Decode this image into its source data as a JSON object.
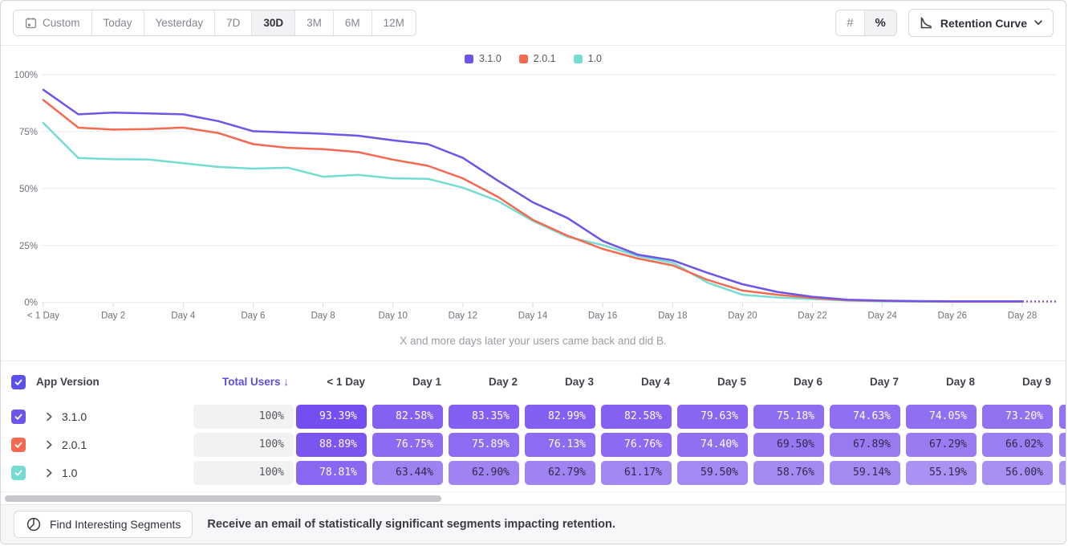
{
  "toolbar": {
    "date_ranges": [
      {
        "label": "Custom",
        "icon": "calendar-icon",
        "selected": false
      },
      {
        "label": "Today",
        "selected": false
      },
      {
        "label": "Yesterday",
        "selected": false
      },
      {
        "label": "7D",
        "selected": false
      },
      {
        "label": "30D",
        "selected": true
      },
      {
        "label": "3M",
        "selected": false
      },
      {
        "label": "6M",
        "selected": false
      },
      {
        "label": "12M",
        "selected": false
      }
    ],
    "value_mode": [
      {
        "label": "#",
        "name": "absolute-numbers",
        "selected": false
      },
      {
        "label": "%",
        "name": "percentages",
        "selected": true
      }
    ],
    "view_selector": {
      "label": "Retention Curve",
      "icon": "retention-curve-icon",
      "chevron_icon": "chevron-down-icon"
    }
  },
  "chart_data": {
    "type": "line",
    "ylim": [
      0,
      100
    ],
    "grid": "horizontal",
    "legend_position": "top-center",
    "yticks": [
      {
        "value": 0,
        "label": "0%"
      },
      {
        "value": 25,
        "label": "25%"
      },
      {
        "value": 50,
        "label": "50%"
      },
      {
        "value": 75,
        "label": "75%"
      },
      {
        "value": 100,
        "label": "100%"
      }
    ],
    "x_tick_labels": [
      {
        "day": 0,
        "label": "< 1 Day"
      },
      {
        "day": 2,
        "label": "Day 2"
      },
      {
        "day": 4,
        "label": "Day 4"
      },
      {
        "day": 6,
        "label": "Day 6"
      },
      {
        "day": 8,
        "label": "Day 8"
      },
      {
        "day": 10,
        "label": "Day 10"
      },
      {
        "day": 12,
        "label": "Day 12"
      },
      {
        "day": 14,
        "label": "Day 14"
      },
      {
        "day": 16,
        "label": "Day 16"
      },
      {
        "day": 18,
        "label": "Day 18"
      },
      {
        "day": 20,
        "label": "Day 20"
      },
      {
        "day": 22,
        "label": "Day 22"
      },
      {
        "day": 24,
        "label": "Day 24"
      },
      {
        "day": 26,
        "label": "Day 26"
      },
      {
        "day": 28,
        "label": "Day 28"
      }
    ],
    "xlabel": "X and more days later your users came back and did B.",
    "projection_dashed_after_day": 28,
    "series": [
      {
        "name": "3.1.0",
        "color": "#6C55E8",
        "values": [
          93.39,
          82.58,
          83.35,
          82.99,
          82.58,
          79.63,
          75.18,
          74.63,
          74.05,
          73.2,
          71.2,
          69.5,
          63.5,
          53.5,
          44.0,
          37.0,
          27.0,
          21.0,
          18.5,
          13.0,
          8.0,
          4.6,
          2.5,
          1.2,
          0.8,
          0.6,
          0.5,
          0.5,
          0.5,
          0.5
        ]
      },
      {
        "name": "2.0.1",
        "color": "#F4694F",
        "values": [
          88.89,
          76.75,
          75.89,
          76.13,
          76.76,
          74.4,
          69.5,
          67.89,
          67.29,
          66.02,
          62.7,
          60.0,
          54.5,
          46.4,
          36.3,
          29.3,
          23.5,
          19.3,
          16.3,
          9.9,
          5.2,
          3.4,
          2.0,
          1.0,
          0.7,
          0.5,
          0.4,
          0.4,
          0.4,
          0.4
        ]
      },
      {
        "name": "1.0",
        "color": "#74DCD0",
        "values": [
          78.81,
          63.44,
          62.9,
          62.79,
          61.17,
          59.5,
          58.76,
          59.14,
          55.19,
          56.0,
          54.5,
          54.3,
          50.4,
          44.6,
          35.8,
          28.8,
          25.2,
          20.4,
          17.5,
          8.7,
          3.4,
          2.2,
          1.5,
          0.8,
          0.5,
          0.4,
          0.4,
          0.4,
          0.4,
          0.4
        ]
      }
    ]
  },
  "table": {
    "header": {
      "select_all_checked": true,
      "app_version_label": "App Version",
      "total_users_label": "Total Users",
      "sort_indicator": "↓",
      "day_columns": [
        "< 1 Day",
        "Day 1",
        "Day 2",
        "Day 3",
        "Day 4",
        "Day 5",
        "Day 6",
        "Day 7",
        "Day 8",
        "Day 9"
      ]
    },
    "rows": [
      {
        "version": "3.1.0",
        "checked": true,
        "color": "#6C55E8",
        "total_users": "100%",
        "values": [
          93.39,
          82.58,
          83.35,
          82.99,
          82.58,
          79.63,
          75.18,
          74.63,
          74.05,
          73.2
        ]
      },
      {
        "version": "2.0.1",
        "checked": true,
        "color": "#F4694F",
        "total_users": "100%",
        "values": [
          88.89,
          76.75,
          75.89,
          76.13,
          76.76,
          74.4,
          69.5,
          67.89,
          67.29,
          66.02
        ]
      },
      {
        "version": "1.0",
        "checked": true,
        "color": "#74DCD0",
        "total_users": "100%",
        "values": [
          78.81,
          63.44,
          62.9,
          62.79,
          61.17,
          59.5,
          58.76,
          59.14,
          55.19,
          56.0
        ]
      }
    ]
  },
  "footer": {
    "button_label": "Find Interesting Segments",
    "button_icon": "segment-circle-icon",
    "message": "Receive an email of statistically significant segments impacting retention."
  },
  "colors": {
    "header_accent": "#5B51E8",
    "cell_dark": "#744AF0",
    "cell_light": "#B19AF2",
    "cell_text_on_dark": "#ffffff",
    "cell_text_on_light": "#2f2a4d"
  }
}
